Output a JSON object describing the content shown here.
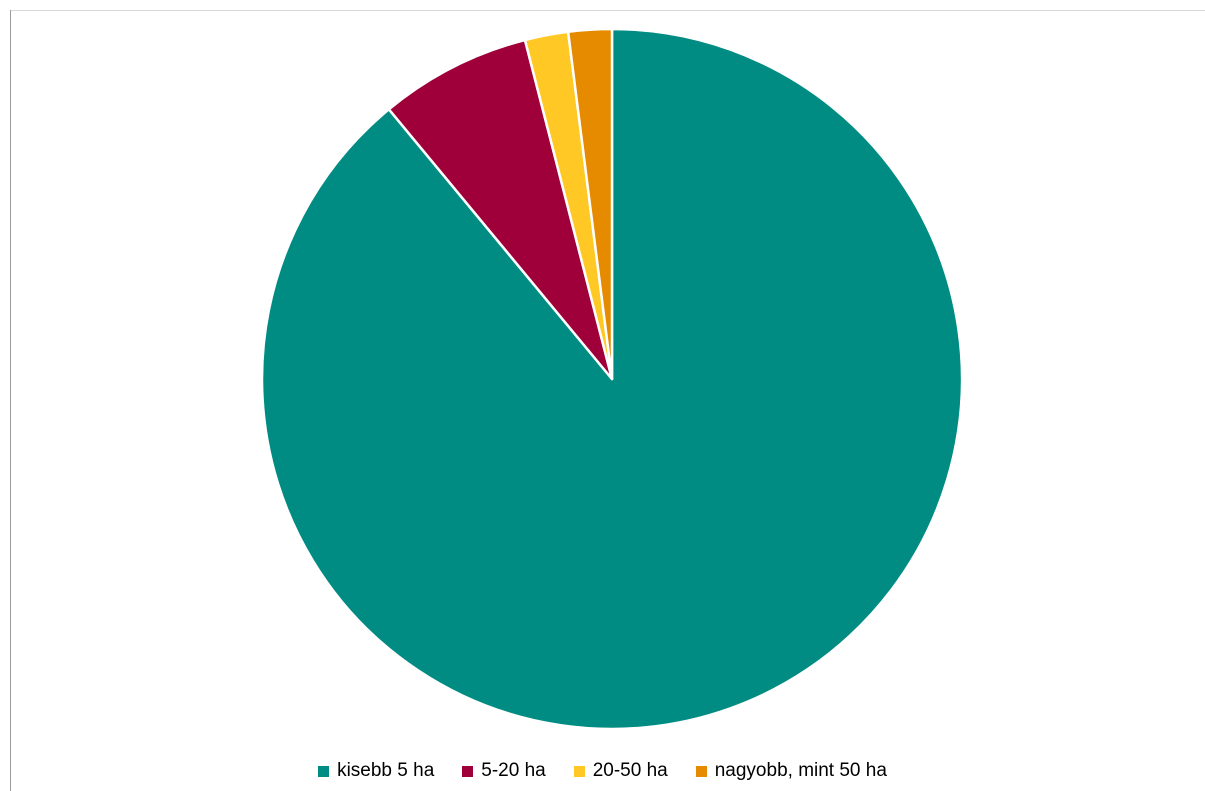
{
  "chart_data": {
    "type": "pie",
    "title": "",
    "categories": [
      "kisebb 5 ha",
      "5-20 ha",
      "20-50 ha",
      "nagyobb, mint 50 ha"
    ],
    "values": [
      89,
      7,
      2,
      2
    ],
    "value_unit": "percent (estimated from slice angles)",
    "colors": [
      "#008c82",
      "#a0003a",
      "#ffc825",
      "#e68a00"
    ],
    "start_angle": "12 o'clock",
    "direction": "clockwise",
    "slice_border_color": "#ffffff",
    "legend_position": "bottom"
  }
}
